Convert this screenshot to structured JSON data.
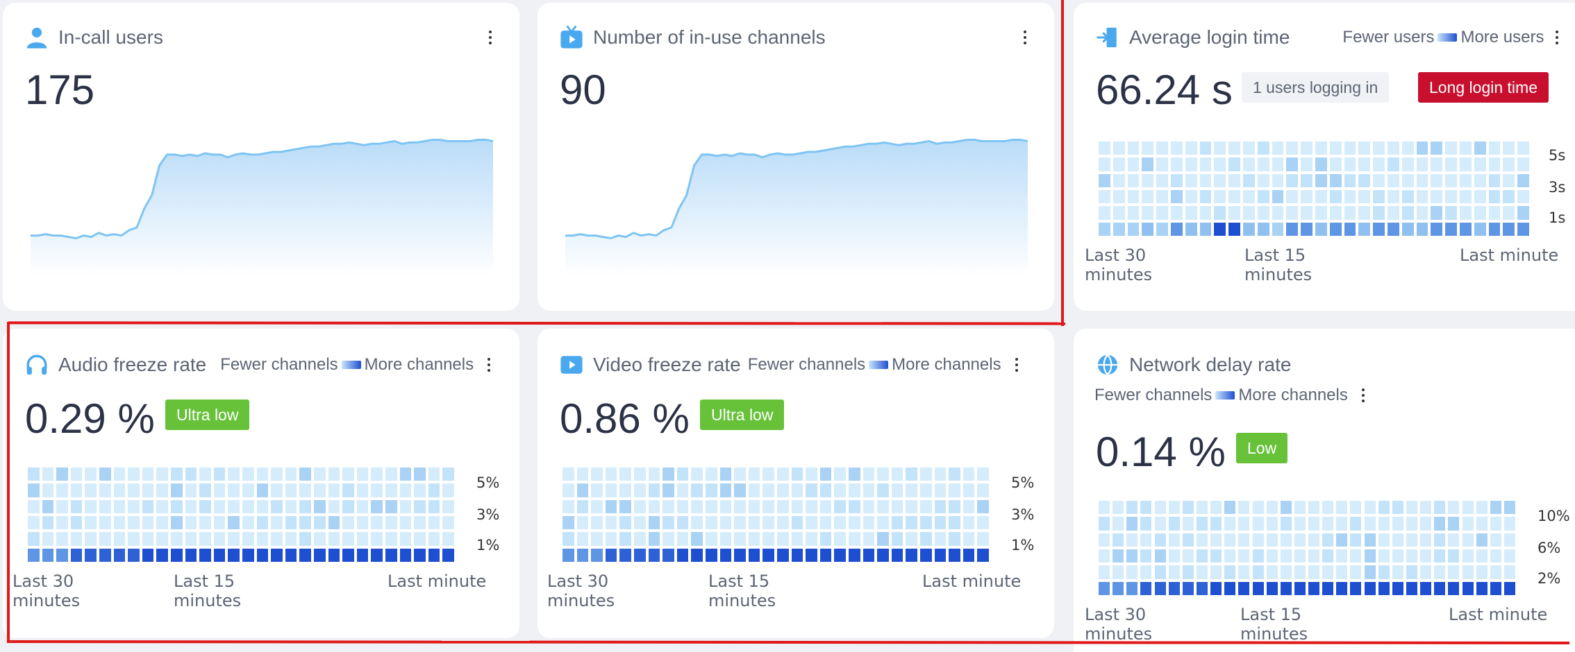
{
  "colors": {
    "background": "#eff1f5",
    "card": "#ffffff",
    "text_primary": "#2c3246",
    "text_secondary": "#5c6474",
    "accent_blue": "#4aa8ef",
    "area_fill": "#c9e5fb",
    "badge_red": "#c8102e",
    "badge_green": "#67c23a",
    "highlight_frame": "#e01818"
  },
  "cards": {
    "in_call": {
      "icon": "user-icon",
      "title": "In-call users",
      "value": "175",
      "trend": [
        30,
        30,
        31,
        30,
        30,
        29,
        28,
        30,
        29,
        32,
        30,
        31,
        30,
        34,
        36,
        50,
        60,
        82,
        90,
        90,
        89,
        90,
        89,
        91,
        90,
        90,
        88,
        90,
        91,
        90,
        90,
        91,
        92,
        92,
        93,
        94,
        95,
        96,
        96,
        97,
        98,
        98,
        99,
        98,
        97,
        98,
        98,
        99,
        100,
        98,
        99,
        99,
        100,
        101,
        101,
        100,
        100,
        100,
        100,
        101,
        101,
        100
      ]
    },
    "channels": {
      "icon": "tv-icon",
      "title": "Number of in-use channels",
      "value": "90",
      "trend": [
        30,
        30,
        31,
        30,
        30,
        29,
        28,
        30,
        29,
        32,
        30,
        31,
        30,
        34,
        36,
        50,
        60,
        82,
        90,
        90,
        89,
        90,
        89,
        91,
        90,
        90,
        88,
        90,
        91,
        90,
        90,
        91,
        92,
        92,
        93,
        94,
        95,
        96,
        96,
        97,
        98,
        98,
        99,
        98,
        97,
        98,
        98,
        99,
        100,
        98,
        99,
        99,
        100,
        101,
        101,
        100,
        100,
        100,
        100,
        101,
        101,
        100
      ]
    },
    "login_time": {
      "icon": "login-door-icon",
      "title": "Average login time",
      "legend_low": "Fewer users",
      "legend_high": "More users",
      "value": "66.24 s",
      "badge_logging": "1 users logging in",
      "badge_alert": "Long login time",
      "y_ticks": [
        "5s",
        "3s",
        "1s"
      ],
      "x_labels": [
        "Last 30 minutes",
        "Last 15 minutes",
        "Last minute"
      ]
    },
    "audio_freeze": {
      "icon": "headphones-icon",
      "title": "Audio freeze rate",
      "legend_low": "Fewer channels",
      "legend_high": "More channels",
      "value": "0.29 %",
      "badge": "Ultra low",
      "y_ticks": [
        "5%",
        "3%",
        "1%"
      ],
      "x_labels": [
        "Last 30 minutes",
        "Last 15 minutes",
        "Last minute"
      ]
    },
    "video_freeze": {
      "icon": "play-video-icon",
      "title": "Video freeze rate",
      "legend_low": "Fewer channels",
      "legend_high": "More channels",
      "value": "0.86 %",
      "badge": "Ultra low",
      "y_ticks": [
        "5%",
        "3%",
        "1%"
      ],
      "x_labels": [
        "Last 30 minutes",
        "Last 15 minutes",
        "Last minute"
      ]
    },
    "network_delay": {
      "icon": "globe-network-icon",
      "title": "Network delay rate",
      "legend_low": "Fewer channels",
      "legend_high": "More channels",
      "value": "0.14 %",
      "badge": "Low",
      "y_ticks": [
        "10%",
        "6%",
        "2%"
      ],
      "x_labels": [
        "Last 30 minutes",
        "Last 15 minutes",
        "Last minute"
      ]
    }
  }
}
